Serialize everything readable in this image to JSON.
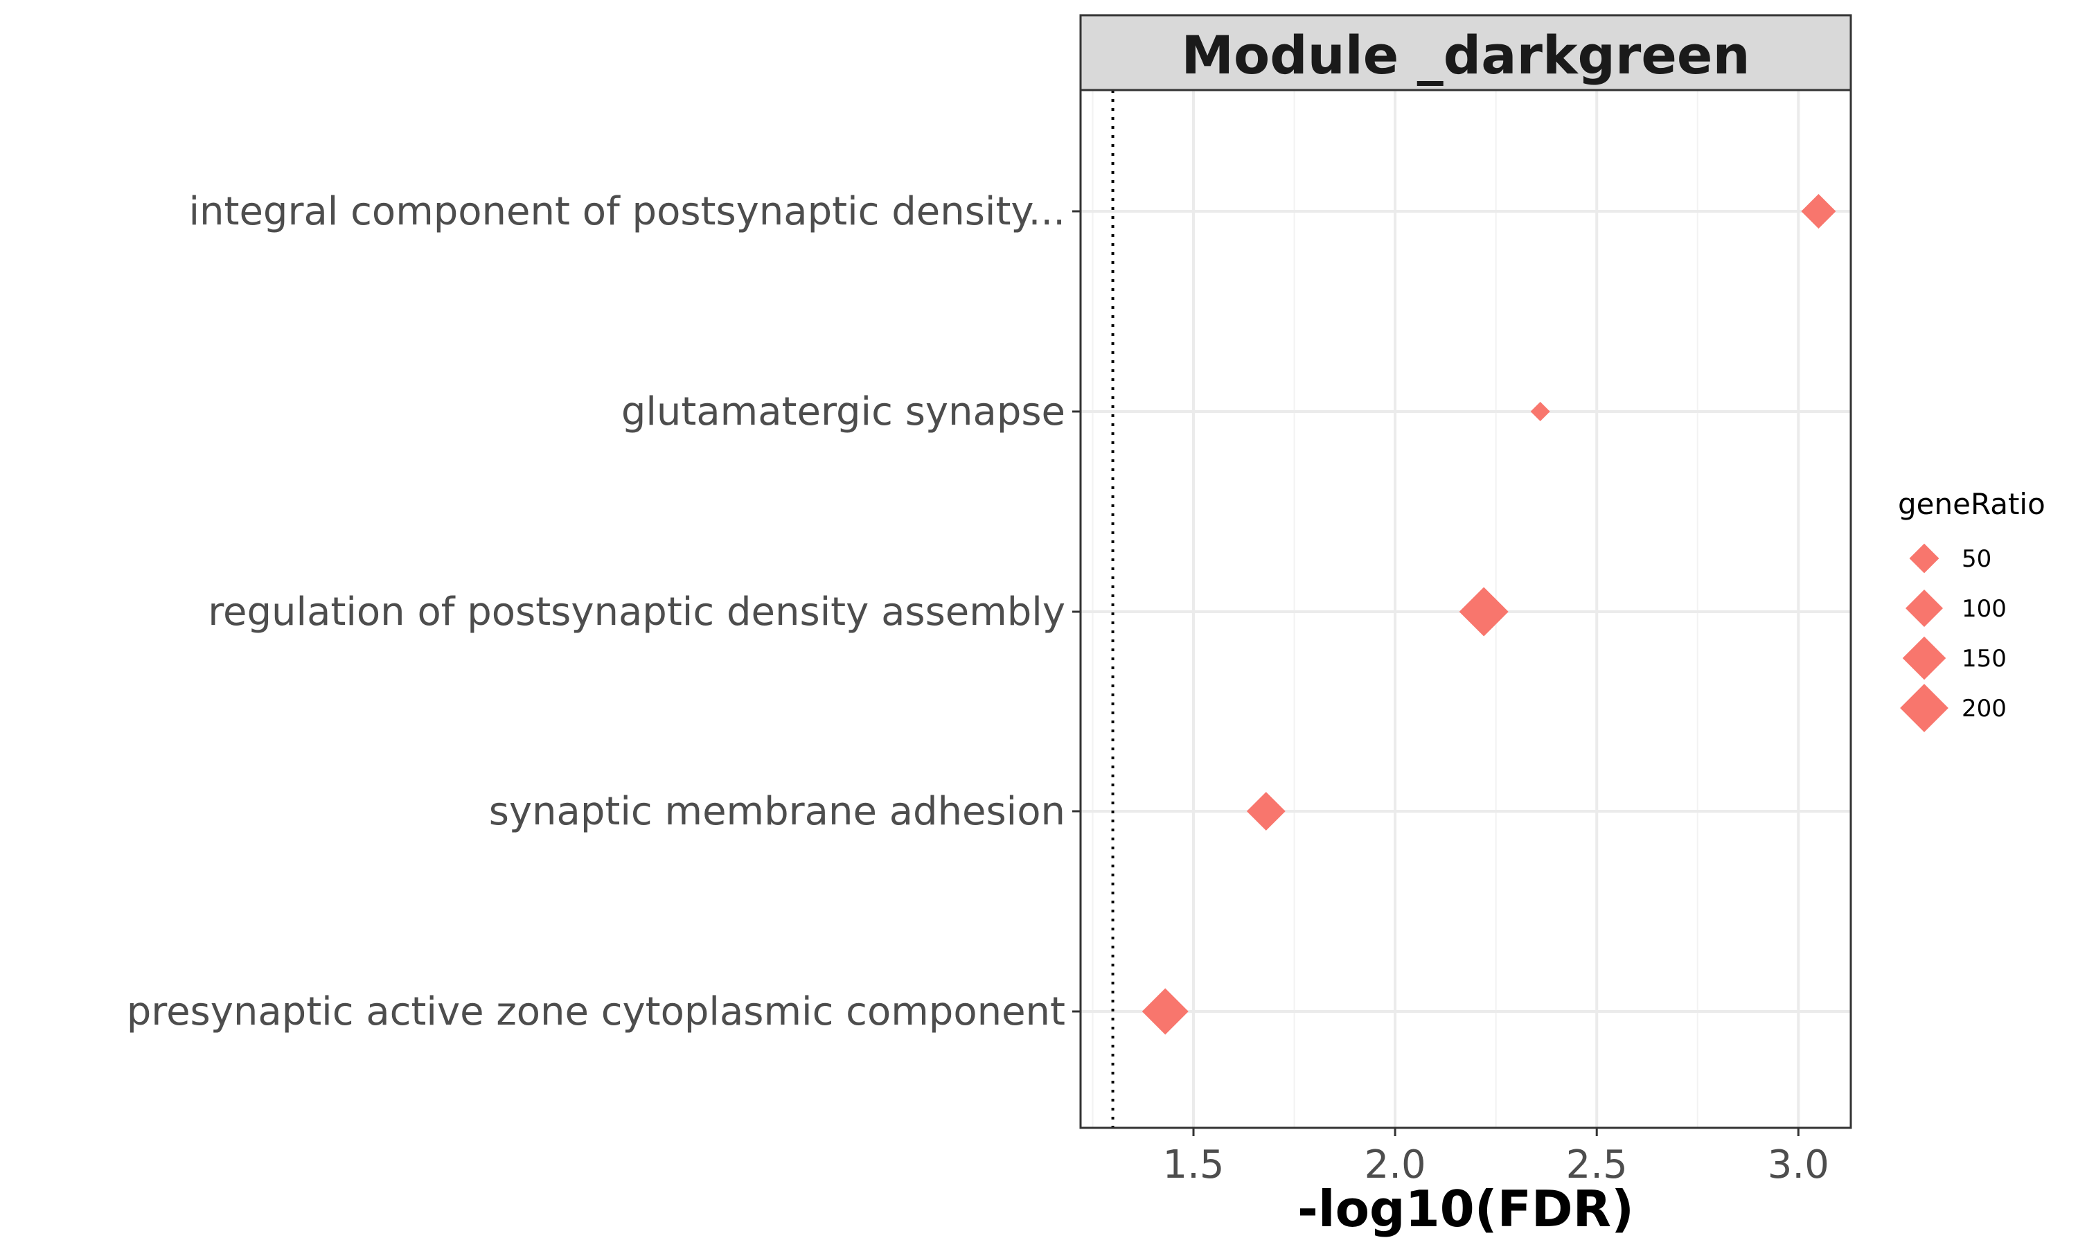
{
  "chart_data": {
    "type": "scatter",
    "title": "Module _darkgreen",
    "xlabel": "-log10(FDR)",
    "ylabel": "",
    "xlim": [
      1.22,
      3.13
    ],
    "x_ticks": [
      1.5,
      2.0,
      2.5,
      3.0
    ],
    "x_tick_labels": [
      "1.5",
      "2.0",
      "2.5",
      "3.0"
    ],
    "threshold_x": 1.3,
    "grid": true,
    "marker": "diamond",
    "marker_color": "#F8766D",
    "categories": [
      "integral component of postsynaptic density...",
      "glutamatergic synapse",
      "regulation of postsynaptic density assembly",
      "synaptic membrane adhesion",
      "presynaptic active zone cytoplasmic component"
    ],
    "points": [
      {
        "category": "integral component of postsynaptic density...",
        "x": 3.05,
        "geneRatio": 80
      },
      {
        "category": "glutamatergic synapse",
        "x": 2.36,
        "geneRatio": 10
      },
      {
        "category": "regulation of postsynaptic density assembly",
        "x": 2.22,
        "geneRatio": 210
      },
      {
        "category": "synaptic membrane adhesion",
        "x": 1.68,
        "geneRatio": 110
      },
      {
        "category": "presynaptic active zone cytoplasmic component",
        "x": 1.43,
        "geneRatio": 180
      }
    ],
    "legend": {
      "title": "geneRatio",
      "position": "right",
      "entries": [
        {
          "label": "50",
          "value": 50
        },
        {
          "label": "100",
          "value": 100
        },
        {
          "label": "150",
          "value": 150
        },
        {
          "label": "200",
          "value": 200
        }
      ]
    }
  }
}
